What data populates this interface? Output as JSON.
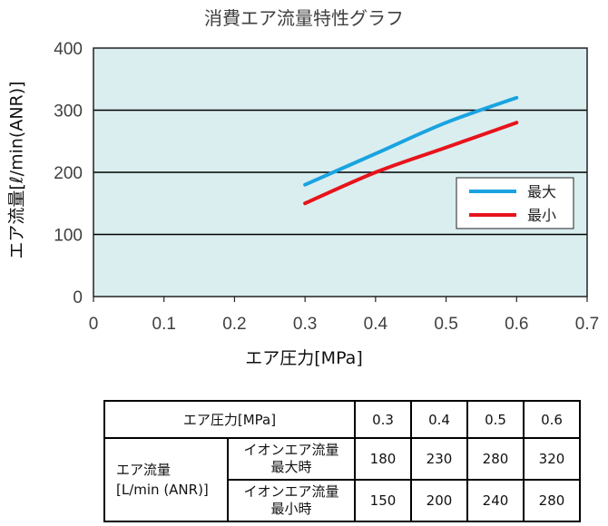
{
  "chart_data": {
    "type": "line",
    "title": "消費エア流量特性グラフ",
    "xlabel": "エア圧力[MPa]",
    "ylabel": "エア流量[ℓ/min(ANR)]",
    "xlim": [
      0,
      0.7
    ],
    "ylim": [
      0,
      400
    ],
    "xticks": [
      "0",
      "0.1",
      "0.2",
      "0.3",
      "0.4",
      "0.5",
      "0.6",
      "0.7"
    ],
    "yticks": [
      "0",
      "100",
      "200",
      "300",
      "400"
    ],
    "grid": "horizontal",
    "legend": "right",
    "background": "#daeef0",
    "series": [
      {
        "name": "最大",
        "color": "#1aa3e0",
        "x": [
          0.3,
          0.4,
          0.5,
          0.6
        ],
        "values": [
          180,
          230,
          280,
          320
        ]
      },
      {
        "name": "最小",
        "color": "#e8141b",
        "x": [
          0.3,
          0.4,
          0.5,
          0.6
        ],
        "values": [
          150,
          200,
          240,
          280
        ]
      }
    ]
  },
  "table": {
    "pressure_header": "エア圧力[MPa]",
    "pressures": [
      "0.3",
      "0.4",
      "0.5",
      "0.6"
    ],
    "group_label_1": "エア流量",
    "group_label_2": "[L/min (ANR)]",
    "rows": [
      {
        "label_1": "イオンエア流量",
        "label_2": "最大時",
        "values": [
          "180",
          "230",
          "280",
          "320"
        ]
      },
      {
        "label_1": "イオンエア流量",
        "label_2": "最小時",
        "values": [
          "150",
          "200",
          "240",
          "280"
        ]
      }
    ]
  }
}
